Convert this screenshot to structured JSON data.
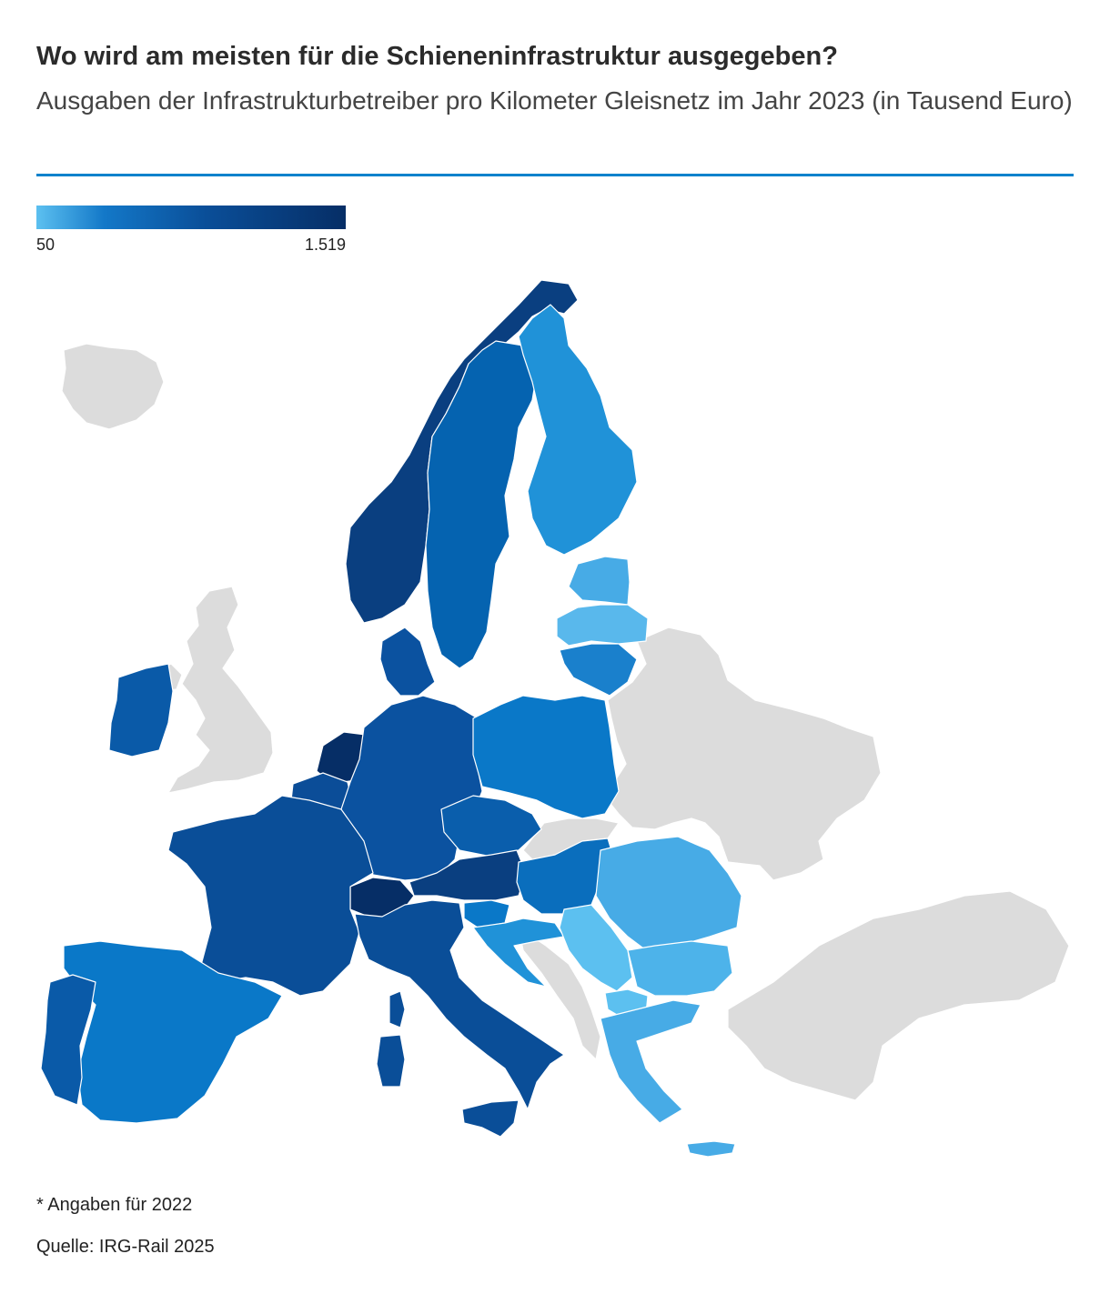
{
  "title": "Wo wird am meisten für die Schieneninfrastruktur ausgegeben?",
  "subtitle": "Ausgaben der Infrastrukturbetreiber pro Kilometer Gleisnetz im Jahr 2023 (in Tausend Euro)",
  "legend": {
    "min_label": "50",
    "max_label": "1.519",
    "min_value": 50,
    "max_value": 1519,
    "colors": [
      "#5cc0f0",
      "#1378c8",
      "#0a4e98",
      "#062e66"
    ]
  },
  "colors": {
    "accent_rule": "#0a82cc",
    "no_data": "#dcdcdc",
    "sea": "#ffffff"
  },
  "footnote": "* Angaben für 2022",
  "source": "Quelle: IRG-Rail 2025"
}
